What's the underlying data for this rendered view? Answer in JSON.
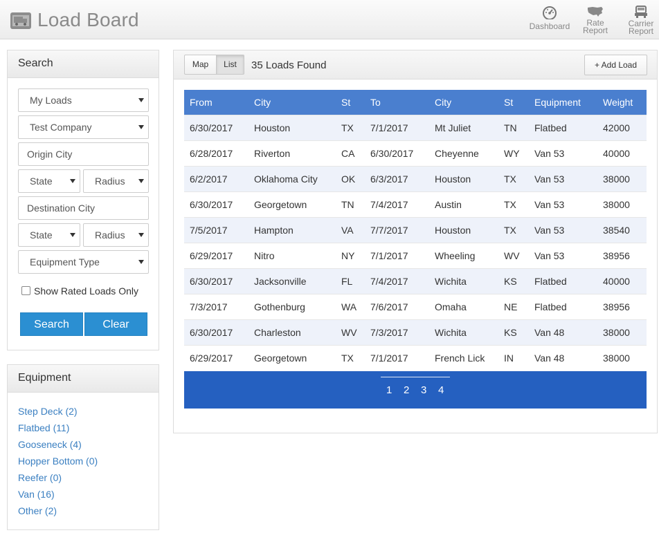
{
  "header": {
    "title": "Load Board",
    "logo_icon": "truck-icon",
    "nav": [
      {
        "label_line1": "Dashboard",
        "label_line2": "",
        "icon": "dashboard-gauge-icon"
      },
      {
        "label_line1": "Rate",
        "label_line2": "Report",
        "icon": "usa-map-icon"
      },
      {
        "label_line1": "Carrier",
        "label_line2": "Report",
        "icon": "truck-front-icon"
      }
    ]
  },
  "search": {
    "title": "Search",
    "loads_select": "My Loads",
    "company_select": "Test Company",
    "origin_city_placeholder": "Origin City",
    "origin_state": "State",
    "origin_radius": "Radius",
    "destination_city_placeholder": "Destination City",
    "destination_state": "State",
    "destination_radius": "Radius",
    "equipment_type": "Equipment Type",
    "rated_only_label": "Show Rated Loads Only",
    "search_button": "Search",
    "clear_button": "Clear"
  },
  "equipment": {
    "title": "Equipment",
    "items": [
      {
        "label": "Step Deck (2)"
      },
      {
        "label": "Flatbed (11)"
      },
      {
        "label": "Gooseneck (4)"
      },
      {
        "label": "Hopper Bottom (0)"
      },
      {
        "label": "Reefer (0)"
      },
      {
        "label": "Van (16)"
      },
      {
        "label": "Other (2)"
      }
    ]
  },
  "results": {
    "map_toggle": "Map",
    "list_toggle": "List",
    "found_text": "35 Loads Found",
    "add_load": "+ Add Load",
    "columns": [
      "From",
      "City",
      "St",
      "To",
      "City",
      "St",
      "Equipment",
      "Weight"
    ],
    "rows": [
      [
        "6/30/2017",
        "Houston",
        "TX",
        "7/1/2017",
        "Mt Juliet",
        "TN",
        "Flatbed",
        "42000"
      ],
      [
        "6/28/2017",
        "Riverton",
        "CA",
        "6/30/2017",
        "Cheyenne",
        "WY",
        "Van 53",
        "40000"
      ],
      [
        "6/2/2017",
        "Oklahoma City",
        "OK",
        "6/3/2017",
        "Houston",
        "TX",
        "Van 53",
        "38000"
      ],
      [
        "6/30/2017",
        "Georgetown",
        "TN",
        "7/4/2017",
        "Austin",
        "TX",
        "Van 53",
        "38000"
      ],
      [
        "7/5/2017",
        "Hampton",
        "VA",
        "7/7/2017",
        "Houston",
        "TX",
        "Van 53",
        "38540"
      ],
      [
        "6/29/2017",
        "Nitro",
        "NY",
        "7/1/2017",
        "Wheeling",
        "WV",
        "Van 53",
        "38956"
      ],
      [
        "6/30/2017",
        "Jacksonville",
        "FL",
        "7/4/2017",
        "Wichita",
        "KS",
        "Flatbed",
        "40000"
      ],
      [
        "7/3/2017",
        "Gothenburg",
        "WA",
        "7/6/2017",
        "Omaha",
        "NE",
        "Flatbed",
        "38956"
      ],
      [
        "6/30/2017",
        "Charleston",
        "WV",
        "7/3/2017",
        "Wichita",
        "KS",
        "Van 48",
        "38000"
      ],
      [
        "6/29/2017",
        "Georgetown",
        "TX",
        "7/1/2017",
        "French Lick",
        "IN",
        "Van 48",
        "38000"
      ]
    ],
    "pages": [
      "1",
      "2",
      "3",
      "4"
    ]
  }
}
